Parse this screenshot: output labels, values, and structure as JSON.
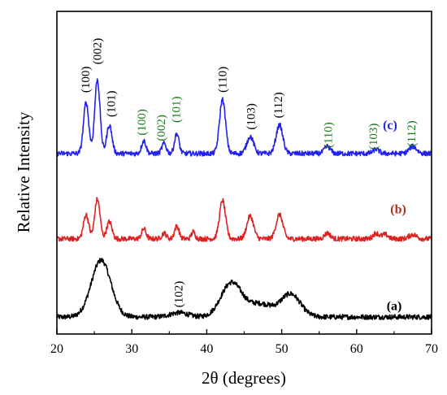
{
  "chart_data": {
    "type": "line",
    "xlabel": "2θ (degrees)",
    "ylabel": "Relative Intensity",
    "xlim": [
      20,
      70
    ],
    "x_ticks": [
      "20",
      "30",
      "40",
      "50",
      "60",
      "70"
    ],
    "y_ticks_labeled": false,
    "grid": false,
    "legend": "none",
    "series": [
      {
        "name": "(a)",
        "color": "#000000",
        "baseline": 0.0,
        "background": [
          [
            20,
            0.0
          ],
          [
            70,
            0.0
          ]
        ],
        "peaks": [
          {
            "x": 25.9,
            "h": 0.4,
            "w": 1.3
          },
          {
            "x": 36.3,
            "h": 0.03,
            "w": 1.2
          },
          {
            "x": 43.3,
            "h": 0.24,
            "w": 1.4
          },
          {
            "x": 47.2,
            "h": 0.09,
            "w": 1.6
          },
          {
            "x": 51.2,
            "h": 0.16,
            "w": 1.3
          }
        ]
      },
      {
        "name": "(b)",
        "color": "#dd2222",
        "baseline": 0.55,
        "background": [
          [
            20,
            0.0
          ],
          [
            70,
            0.0
          ]
        ],
        "peaks": [
          {
            "x": 23.9,
            "h": 0.17,
            "w": 0.35
          },
          {
            "x": 25.4,
            "h": 0.28,
            "w": 0.35
          },
          {
            "x": 27.0,
            "h": 0.12,
            "w": 0.35
          },
          {
            "x": 31.6,
            "h": 0.07,
            "w": 0.3
          },
          {
            "x": 34.3,
            "h": 0.04,
            "w": 0.3
          },
          {
            "x": 36.0,
            "h": 0.09,
            "w": 0.3
          },
          {
            "x": 38.2,
            "h": 0.05,
            "w": 0.25
          },
          {
            "x": 42.1,
            "h": 0.27,
            "w": 0.4
          },
          {
            "x": 45.8,
            "h": 0.16,
            "w": 0.45
          },
          {
            "x": 49.7,
            "h": 0.17,
            "w": 0.45
          },
          {
            "x": 56.1,
            "h": 0.04,
            "w": 0.4
          },
          {
            "x": 62.6,
            "h": 0.04,
            "w": 0.4
          },
          {
            "x": 63.8,
            "h": 0.03,
            "w": 0.4
          },
          {
            "x": 67.5,
            "h": 0.03,
            "w": 0.5
          }
        ]
      },
      {
        "name": "(c)",
        "color": "#2222ee",
        "baseline": 1.15,
        "background": [
          [
            20,
            0.0
          ],
          [
            70,
            0.0
          ]
        ],
        "peaks": [
          {
            "x": 23.9,
            "h": 0.36,
            "w": 0.35
          },
          {
            "x": 25.4,
            "h": 0.52,
            "w": 0.35
          },
          {
            "x": 27.0,
            "h": 0.2,
            "w": 0.35
          },
          {
            "x": 31.6,
            "h": 0.09,
            "w": 0.3
          },
          {
            "x": 34.3,
            "h": 0.07,
            "w": 0.3
          },
          {
            "x": 36.0,
            "h": 0.14,
            "w": 0.3
          },
          {
            "x": 42.1,
            "h": 0.38,
            "w": 0.4
          },
          {
            "x": 45.8,
            "h": 0.12,
            "w": 0.45
          },
          {
            "x": 49.7,
            "h": 0.2,
            "w": 0.45
          },
          {
            "x": 56.1,
            "h": 0.05,
            "w": 0.4
          },
          {
            "x": 62.6,
            "h": 0.03,
            "w": 0.4
          },
          {
            "x": 67.5,
            "h": 0.05,
            "w": 0.5
          }
        ]
      }
    ],
    "curve_labels": [
      {
        "text": "(a)",
        "x": 64.0,
        "y": 0.05,
        "color": "#000000"
      },
      {
        "text": "(b)",
        "x": 64.5,
        "y": 0.73,
        "color": "#b03020"
      },
      {
        "text": "(c)",
        "x": 63.5,
        "y": 1.32,
        "color": "#2222ee"
      }
    ],
    "annotations": [
      {
        "text": "(100)",
        "x": 23.9,
        "y": 1.67,
        "color": "#000000"
      },
      {
        "text": "(002)",
        "x": 25.5,
        "y": 1.87,
        "color": "#000000"
      },
      {
        "text": "(101)",
        "x": 27.3,
        "y": 1.5,
        "color": "#000000"
      },
      {
        "text": "(100)",
        "x": 31.4,
        "y": 1.37,
        "color": "#1e7a1e"
      },
      {
        "text": "(002)",
        "x": 34.0,
        "y": 1.33,
        "color": "#1e7a1e"
      },
      {
        "text": "(101)",
        "x": 36.0,
        "y": 1.46,
        "color": "#1e7a1e"
      },
      {
        "text": "(110)",
        "x": 42.2,
        "y": 1.67,
        "color": "#000000"
      },
      {
        "text": "(103)",
        "x": 46.0,
        "y": 1.41,
        "color": "#000000"
      },
      {
        "text": "(112)",
        "x": 49.6,
        "y": 1.49,
        "color": "#000000"
      },
      {
        "text": "(110)",
        "x": 56.3,
        "y": 1.28,
        "color": "#1e7a1e"
      },
      {
        "text": "(103)",
        "x": 62.3,
        "y": 1.27,
        "color": "#1e7a1e"
      },
      {
        "text": "(112)",
        "x": 67.4,
        "y": 1.29,
        "color": "#1e7a1e"
      },
      {
        "text": "(102)",
        "x": 36.3,
        "y": 0.16,
        "color": "#000000"
      }
    ]
  }
}
